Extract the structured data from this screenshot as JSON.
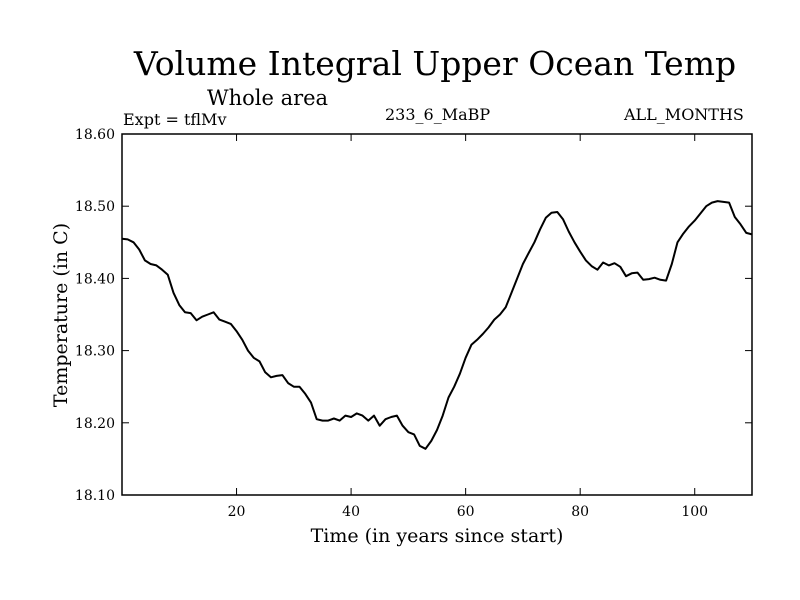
{
  "chart_data": {
    "type": "line",
    "title": "Volume Integral Upper Ocean Temp",
    "subtitle": "Whole area",
    "experiment": "Expt = tflMv",
    "run_name": "233_6_MaBP",
    "months": "ALL_MONTHS",
    "xlabel": "Time (in years since start)",
    "ylabel": "Temperature (in C)",
    "xlim": [
      0,
      110
    ],
    "ylim": [
      18.1,
      18.6
    ],
    "xticks": [
      20,
      40,
      60,
      80,
      100
    ],
    "yticks": [
      18.1,
      18.2,
      18.3,
      18.4,
      18.5,
      18.6
    ],
    "ytick_labels": [
      "18.10",
      "18.20",
      "18.30",
      "18.40",
      "18.50",
      "18.60"
    ],
    "series": [
      {
        "name": "Volume Integral Upper Ocean Temp",
        "x": [
          0,
          1,
          2,
          3,
          4,
          5,
          6,
          7,
          8,
          9,
          10,
          11,
          12,
          13,
          14,
          15,
          16,
          17,
          18,
          19,
          20,
          21,
          22,
          23,
          24,
          25,
          26,
          27,
          28,
          29,
          30,
          31,
          32,
          33,
          34,
          35,
          36,
          37,
          38,
          39,
          40,
          41,
          42,
          43,
          44,
          45,
          46,
          47,
          48,
          49,
          50,
          51,
          52,
          53,
          54,
          55,
          56,
          57,
          58,
          59,
          60,
          61,
          62,
          63,
          64,
          65,
          66,
          67,
          68,
          69,
          70,
          71,
          72,
          73,
          74,
          75,
          76,
          77,
          78,
          79,
          80,
          81,
          82,
          83,
          84,
          85,
          86,
          87,
          88,
          89,
          90,
          91,
          92,
          93,
          94,
          95,
          96,
          97,
          98,
          99,
          100,
          101,
          102,
          103,
          104,
          105,
          106,
          107,
          108,
          109,
          110
        ],
        "y": [
          18.455,
          18.454,
          18.45,
          18.44,
          18.425,
          18.42,
          18.418,
          18.412,
          18.405,
          18.38,
          18.363,
          18.353,
          18.352,
          18.342,
          18.347,
          18.35,
          18.353,
          18.343,
          18.34,
          18.337,
          18.327,
          18.315,
          18.3,
          18.29,
          18.285,
          18.27,
          18.263,
          18.265,
          18.266,
          18.255,
          18.25,
          18.25,
          18.24,
          18.228,
          18.205,
          18.203,
          18.203,
          18.206,
          18.203,
          18.21,
          18.208,
          18.213,
          18.21,
          18.203,
          18.21,
          18.196,
          18.205,
          18.208,
          18.21,
          18.196,
          18.187,
          18.184,
          18.168,
          18.164,
          18.175,
          18.19,
          18.21,
          18.235,
          18.25,
          18.268,
          18.29,
          18.308,
          18.315,
          18.323,
          18.332,
          18.343,
          18.35,
          18.36,
          18.38,
          18.4,
          18.42,
          18.435,
          18.45,
          18.468,
          18.484,
          18.491,
          18.492,
          18.482,
          18.465,
          18.45,
          18.437,
          18.425,
          18.417,
          18.412,
          18.422,
          18.418,
          18.421,
          18.416,
          18.403,
          18.407,
          18.408,
          18.398,
          18.399,
          18.401,
          18.398,
          18.397,
          18.42,
          18.45,
          18.462,
          18.472,
          18.48,
          18.49,
          18.5,
          18.505,
          18.507,
          18.506,
          18.505,
          18.485,
          18.475,
          18.463,
          18.461
        ]
      }
    ]
  }
}
